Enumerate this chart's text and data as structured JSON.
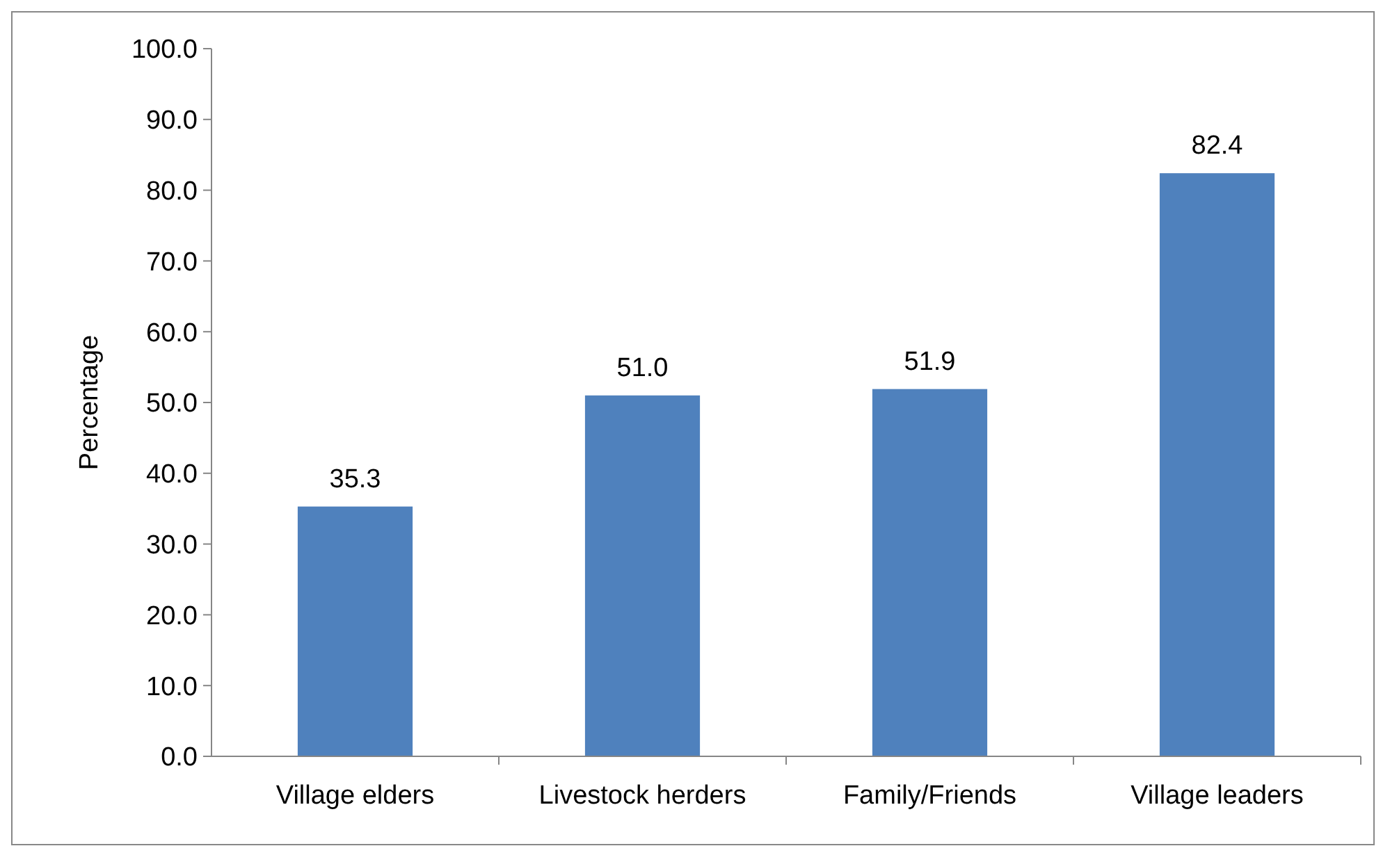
{
  "chart_data": {
    "type": "bar",
    "ylabel": "Percentage",
    "categories": [
      "Village elders",
      "Livestock herders",
      "Family/Friends",
      "Village leaders"
    ],
    "values": [
      35.3,
      51.0,
      51.9,
      82.4
    ],
    "value_labels": [
      "35.3",
      "51.0",
      "51.9",
      "82.4"
    ],
    "color": "#4f81bd",
    "ylim": [
      0,
      100
    ],
    "yticks": [
      {
        "value": 0,
        "label": "0.0"
      },
      {
        "value": 10,
        "label": "10.0"
      },
      {
        "value": 20,
        "label": "20.0"
      },
      {
        "value": 30,
        "label": "30.0"
      },
      {
        "value": 40,
        "label": "40.0"
      },
      {
        "value": 50,
        "label": "50.0"
      },
      {
        "value": 60,
        "label": "60.0"
      },
      {
        "value": 70,
        "label": "70.0"
      },
      {
        "value": 80,
        "label": "80.0"
      },
      {
        "value": 90,
        "label": "90.0"
      },
      {
        "value": 100,
        "label": "100.0"
      }
    ],
    "grid": false
  }
}
